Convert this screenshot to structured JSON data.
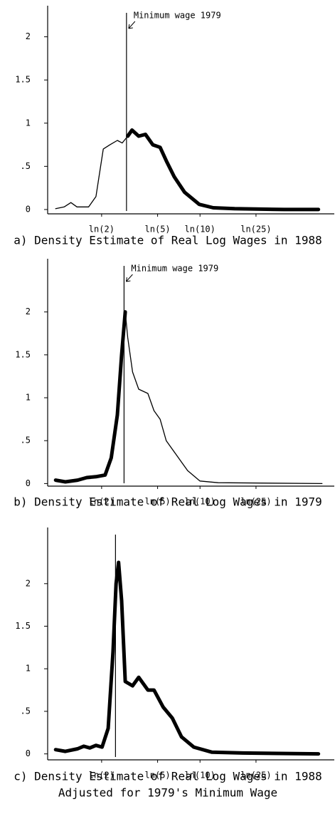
{
  "chart_data": [
    {
      "type": "line",
      "title": "a) Density Estimate of Real Log Wages in 1988",
      "annotation": {
        "text": "Minimum wage 1979",
        "x": 1.1
      },
      "x": [
        -0.06,
        0.08,
        0.19,
        0.29,
        0.48,
        0.6,
        0.72,
        0.83,
        0.95,
        1.03,
        1.12,
        1.19,
        1.3,
        1.41,
        1.53,
        1.65,
        1.76,
        1.88,
        2.05,
        2.29,
        2.52,
        2.87,
        3.68,
        4.24
      ],
      "series": [
        {
          "color": "#000",
          "width": 1.3,
          "values": [
            0.01,
            0.03,
            0.08,
            0.03,
            0.03,
            0.15,
            0.7,
            0.75,
            0.8,
            0.77,
            0.85,
            null,
            null,
            null,
            null,
            null,
            null,
            null,
            null,
            null,
            null,
            null,
            null,
            null
          ]
        },
        {
          "color": "#000",
          "width": 5,
          "values": [
            null,
            null,
            null,
            null,
            null,
            null,
            null,
            null,
            null,
            null,
            0.85,
            0.92,
            0.85,
            0.87,
            0.75,
            0.72,
            0.55,
            0.38,
            0.2,
            0.06,
            0.02,
            0.01,
            0,
            0
          ]
        }
      ],
      "xlim": [
        -0.19,
        4.5
      ],
      "ylim": [
        -0.05,
        2.36
      ],
      "xticks": [
        {
          "value": 0.693,
          "label": "ln(2)"
        },
        {
          "value": 1.609,
          "label": "ln(5)"
        },
        {
          "value": 2.303,
          "label": "ln(10)"
        },
        {
          "value": 3.219,
          "label": "ln(25)"
        }
      ],
      "yticks": [
        0,
        {
          "value": 0.5,
          "label": ".5"
        },
        1,
        1.5,
        2
      ]
    },
    {
      "type": "line",
      "title": "b) Density Estimate of Real Log Wages in 1979",
      "annotation": {
        "text": "Minimum wage 1979",
        "x": 1.06
      },
      "x": [
        -0.06,
        0.1,
        0.3,
        0.45,
        0.6,
        0.75,
        0.85,
        0.95,
        1.02,
        1.08,
        1.12,
        1.2,
        1.3,
        1.45,
        1.55,
        1.65,
        1.75,
        1.9,
        2.1,
        2.3,
        2.6,
        4.3
      ],
      "series": [
        {
          "color": "#000",
          "width": 5,
          "values": [
            0.04,
            0.02,
            0.04,
            0.07,
            0.08,
            0.1,
            0.3,
            0.8,
            1.5,
            2.0,
            null,
            null,
            null,
            null,
            null,
            null,
            null,
            null,
            null,
            null,
            null,
            null
          ]
        },
        {
          "color": "#000",
          "width": 1.3,
          "values": [
            null,
            null,
            null,
            null,
            null,
            null,
            null,
            null,
            null,
            2.0,
            1.7,
            1.3,
            1.1,
            1.05,
            0.85,
            0.75,
            0.5,
            0.35,
            0.15,
            0.03,
            0.01,
            0
          ]
        }
      ],
      "xlim": [
        -0.19,
        4.5
      ],
      "ylim": [
        -0.03,
        2.62
      ],
      "xticks": [
        {
          "value": 0.693,
          "label": "ln(2)"
        },
        {
          "value": 1.609,
          "label": "ln(5)"
        },
        {
          "value": 2.303,
          "label": "ln(10)"
        },
        {
          "value": 3.219,
          "label": "ln(25)"
        }
      ],
      "yticks": [
        0,
        {
          "value": 0.5,
          "label": ".5"
        },
        1,
        1.5,
        2
      ]
    },
    {
      "type": "line",
      "title": "c) Density Estimate of Real Log Wages in 1988",
      "subtitle": "Adjusted for 1979's Minimum Wage",
      "vline_x": 0.92,
      "x": [
        -0.06,
        0.1,
        0.3,
        0.4,
        0.5,
        0.6,
        0.7,
        0.8,
        0.88,
        0.93,
        0.97,
        1.02,
        1.08,
        1.2,
        1.3,
        1.45,
        1.55,
        1.7,
        1.85,
        2.0,
        2.2,
        2.5,
        3.0,
        4.24
      ],
      "series": [
        {
          "color": "#000",
          "width": 5,
          "values": [
            0.05,
            0.03,
            0.06,
            0.09,
            0.07,
            0.1,
            0.08,
            0.3,
            1.2,
            2.0,
            2.25,
            1.8,
            0.85,
            0.8,
            0.9,
            0.75,
            0.75,
            0.55,
            0.42,
            0.2,
            0.08,
            0.02,
            0.01,
            0
          ]
        }
      ],
      "xlim": [
        -0.19,
        4.5
      ],
      "ylim": [
        -0.07,
        2.66
      ],
      "xticks": [
        {
          "value": 0.693,
          "label": "ln(2)"
        },
        {
          "value": 1.609,
          "label": "ln(5)"
        },
        {
          "value": 2.303,
          "label": "ln(10)"
        },
        {
          "value": 3.219,
          "label": "ln(25)"
        }
      ],
      "yticks": [
        0,
        {
          "value": 0.5,
          "label": ".5"
        },
        1,
        1.5,
        2
      ]
    }
  ]
}
